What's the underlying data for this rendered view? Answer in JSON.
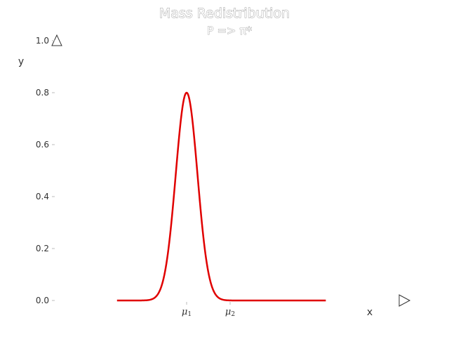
{
  "chart_data": {
    "type": "line",
    "title": "Mass Redistribution",
    "subtitle": "P => π*",
    "xlabel": "x",
    "ylabel": "y",
    "ylim": [
      0,
      1.0
    ],
    "yticks": [
      "0.0",
      "0.2",
      "0.4",
      "0.6",
      "0.8",
      "1.0"
    ],
    "xticks": [
      {
        "label": "μ",
        "subscript": "1",
        "x": 1
      },
      {
        "label": "μ",
        "subscript": "2",
        "x": 2
      }
    ],
    "grid": false,
    "legend": "none",
    "series": [
      {
        "color": "#e00000",
        "curve": "gaussian",
        "peak_x": 1,
        "peak_y": 0.8,
        "sigma": 0.25,
        "x_start": -0.6,
        "x_end": 4.2
      }
    ]
  },
  "colors": {
    "line": "#e00000",
    "text": "#333333",
    "background": "#ffffff"
  },
  "icons": {
    "y_axis_arrow": "up-triangle-arrow-icon",
    "x_axis_arrow": "right-triangle-arrow-icon"
  }
}
